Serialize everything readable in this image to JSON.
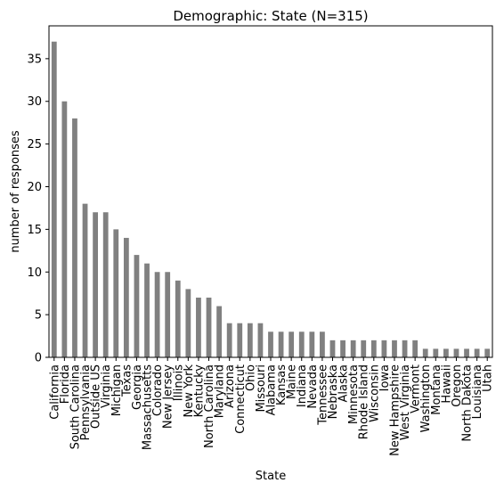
{
  "chart_data": {
    "type": "bar",
    "title": "Demographic: State (N=315)",
    "xlabel": "State",
    "ylabel": "number of responses",
    "ylim": [
      0,
      38.85
    ],
    "yticks": [
      0,
      5,
      10,
      15,
      20,
      25,
      30,
      35
    ],
    "grid": false,
    "legend": "none",
    "bar_color": "#808080",
    "categories": [
      "California",
      "Florida",
      "South Carolina",
      "Pennsylvania",
      "Outside US",
      "Virginia",
      "Michigan",
      "Texas",
      "Georgia",
      "Massachusetts",
      "Colorado",
      "New Jersey",
      "Illinois",
      "New York",
      "Kentucky",
      "North Carolina",
      "Maryland",
      "Arizona",
      "Connecticut",
      "Ohio",
      "Missouri",
      "Alabama",
      "Kansas",
      "Maine",
      "Indiana",
      "Nevada",
      "Tennessee",
      "Nebraska",
      "Alaska",
      "Minnesota",
      "Rhode Island",
      "Wisconsin",
      "Iowa",
      "New Hampshire",
      "West Virginia",
      "Vermont",
      "Washington",
      "Montana",
      "Hawaii",
      "Oregon",
      "North Dakota",
      "Louisiana",
      "Utah"
    ],
    "values": [
      37,
      30,
      28,
      18,
      17,
      17,
      15,
      14,
      12,
      11,
      10,
      10,
      9,
      8,
      7,
      7,
      6,
      4,
      4,
      4,
      4,
      3,
      3,
      3,
      3,
      3,
      3,
      2,
      2,
      2,
      2,
      2,
      2,
      2,
      2,
      2,
      1,
      1,
      1,
      1,
      1,
      1,
      1
    ]
  }
}
